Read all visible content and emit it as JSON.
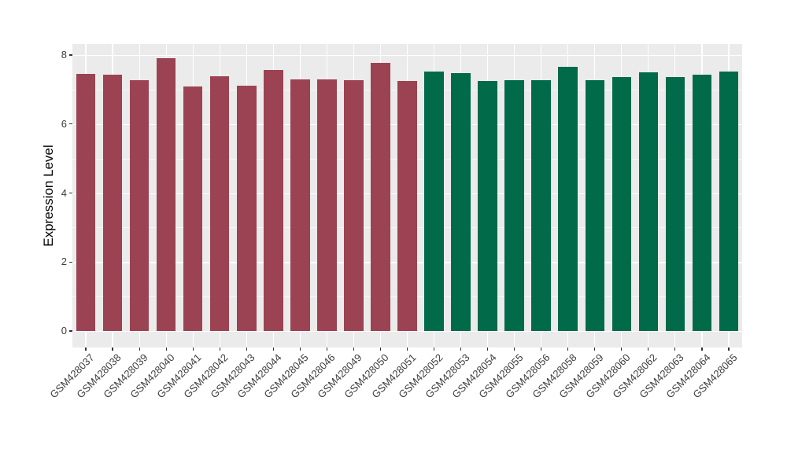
{
  "chart_data": {
    "type": "bar",
    "title": "",
    "xlabel": "",
    "ylabel": "Expression Level",
    "ylim": [
      0,
      8
    ],
    "yticks_major": [
      0,
      2,
      4,
      6,
      8
    ],
    "yticks_minor": [
      1,
      3,
      5,
      7
    ],
    "grid": "on",
    "legend": "none",
    "panel_background": "#EBEBEB",
    "grid_color": "#FFFFFF",
    "axis_text_color": "#3D3D3D",
    "axis_title_color": "#000000",
    "group_colors": {
      "maroon": "#9B4352",
      "green": "#006A49"
    },
    "categories": [
      "GSM428037",
      "GSM428038",
      "GSM428039",
      "GSM428040",
      "GSM428041",
      "GSM428042",
      "GSM428043",
      "GSM428044",
      "GSM428045",
      "GSM428046",
      "GSM428049",
      "GSM428050",
      "GSM428051",
      "GSM428052",
      "GSM428053",
      "GSM428054",
      "GSM428055",
      "GSM428056",
      "GSM428058",
      "GSM428059",
      "GSM428060",
      "GSM428062",
      "GSM428063",
      "GSM428064",
      "GSM428065"
    ],
    "values": [
      7.46,
      7.44,
      7.28,
      7.9,
      7.09,
      7.38,
      7.11,
      7.57,
      7.3,
      7.29,
      7.27,
      7.77,
      7.24,
      7.51,
      7.47,
      7.24,
      7.28,
      7.28,
      7.65,
      7.27,
      7.36,
      7.49,
      7.36,
      7.42,
      7.53
    ],
    "groups": [
      "maroon",
      "maroon",
      "maroon",
      "maroon",
      "maroon",
      "maroon",
      "maroon",
      "maroon",
      "maroon",
      "maroon",
      "maroon",
      "maroon",
      "maroon",
      "green",
      "green",
      "green",
      "green",
      "green",
      "green",
      "green",
      "green",
      "green",
      "green",
      "green",
      "green"
    ]
  }
}
